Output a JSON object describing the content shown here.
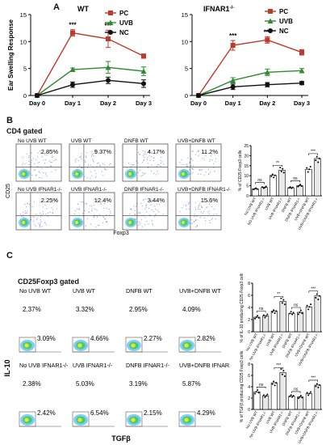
{
  "panel_a": {
    "label": "A",
    "colors": {
      "PC": "#c0392b",
      "UVB": "#2e8b2e",
      "NC": "#111111"
    },
    "chart_data": [
      {
        "type": "line",
        "title": "WT",
        "ylabel": "Ear Swelling Response",
        "categories": [
          "Day 0",
          "Day 1",
          "Day 2",
          "Day 3"
        ],
        "ylim": [
          0,
          15
        ],
        "yticks": [
          "0",
          "5",
          "10",
          "15"
        ],
        "series": [
          {
            "name": "PC",
            "values": [
              0,
              11.6,
              10.5,
              7.3
            ],
            "err": [
              0,
              0.6,
              1.6,
              0.4
            ]
          },
          {
            "name": "UVB",
            "values": [
              0,
              4.8,
              5.2,
              4.5
            ],
            "err": [
              0,
              0.3,
              1.1,
              0.8
            ]
          },
          {
            "name": "NC",
            "values": [
              0,
              2.0,
              2.8,
              2.2
            ],
            "err": [
              0,
              0.5,
              0.6,
              0.7
            ]
          }
        ],
        "annotations": [
          {
            "at": "Day 1",
            "text": "***"
          },
          {
            "at": "Day 2",
            "text": "***"
          }
        ],
        "legend": "top-right"
      },
      {
        "type": "line",
        "title": "IFNAR1",
        "title_sup": "-/-",
        "categories": [
          "Day 0",
          "Day 1",
          "Day 2",
          "Day 3"
        ],
        "ylim": [
          0,
          15
        ],
        "yticks": [
          "0",
          "5",
          "10",
          "15"
        ],
        "series": [
          {
            "name": "PC",
            "values": [
              0,
              9.3,
              10.3,
              8.0
            ],
            "err": [
              0,
              0.9,
              0.6,
              0.5
            ]
          },
          {
            "name": "UVB",
            "values": [
              0,
              2.8,
              4.3,
              4.6
            ],
            "err": [
              0,
              0.5,
              0.6,
              0.4
            ]
          },
          {
            "name": "NC",
            "values": [
              0,
              1.6,
              2.0,
              2.3
            ],
            "err": [
              0,
              0.5,
              0.4,
              0.3
            ]
          }
        ],
        "annotations": [
          {
            "at": "Day 1",
            "text": "***"
          },
          {
            "at": "Day 2",
            "text": "***"
          }
        ],
        "legend": "top-right"
      }
    ]
  },
  "panel_b": {
    "label": "B",
    "gate": "CD4 gated",
    "yaxis": "CD25",
    "xaxis": "Foxp3",
    "plots": [
      {
        "label": "No UVB WT",
        "pct": "2.85%"
      },
      {
        "label": "UVB WT",
        "pct": "9.37%"
      },
      {
        "label": "DNFB WT",
        "pct": "4.17%"
      },
      {
        "label": "UVB+DNFB WT",
        "pct": "11.2%"
      },
      {
        "label": "No UVB IFNAR1-/-",
        "pct": "2.25%"
      },
      {
        "label": "UVB IFNAR1-/-",
        "pct": "12.4%"
      },
      {
        "label": "DNFB IFNAR1-/-",
        "pct": "3.44%"
      },
      {
        "label": "UVB+DNFB IFNAR1-/-",
        "pct": "15.6%"
      }
    ],
    "bar_chart": {
      "type": "bar",
      "ylabel": "% of CD25 Foxp3 cells",
      "ylim": [
        0,
        25
      ],
      "yticks": [
        "0",
        "5",
        "10",
        "15",
        "20",
        "25"
      ],
      "categories": [
        "No UVB WT",
        "NO UVB IFNAR1-/-",
        "UVB WT",
        "UVB IFNAR1-/-",
        "DNFB WT",
        "DNFB IFNAR1-/-",
        "UVB+DNFB WT",
        "UVB+DNFB IFNAR1-/-"
      ],
      "values": [
        3.5,
        4.2,
        10.2,
        12.8,
        4.0,
        5.1,
        13.2,
        18.6
      ],
      "sig": [
        {
          "pair": [
            0,
            1
          ],
          "text": "ns"
        },
        {
          "pair": [
            2,
            3
          ],
          "text": "**"
        },
        {
          "pair": [
            4,
            5
          ],
          "text": "ns"
        },
        {
          "pair": [
            6,
            7
          ],
          "text": "***"
        }
      ]
    }
  },
  "panel_c": {
    "label": "C",
    "gate": "CD25Foxp3 gated",
    "yaxis": "IL-10",
    "xaxis": "TGFβ",
    "plots": [
      {
        "label": "No UVB WT",
        "top": "2.37%",
        "bottom": "3.09%"
      },
      {
        "label": "UVB WT",
        "top": "3.32%",
        "bottom": "4.66%"
      },
      {
        "label": "DNFB WT",
        "top": "2.95%",
        "bottom": "2.27%"
      },
      {
        "label": "UVB+DNFB WT",
        "top": "4.09%",
        "bottom": "2.82%"
      },
      {
        "label": "No UVB IFNAR1-/-",
        "top": "2.38%",
        "bottom": "2.42%"
      },
      {
        "label": "UVB IFNAR1-/-",
        "top": "5.03%",
        "bottom": "6.54%"
      },
      {
        "label": "DNFB IFNAR1-/-",
        "top": "3.19%",
        "bottom": "2.15%"
      },
      {
        "label": "UVB+DNFB IFNAR1-/-",
        "top": "5.87%",
        "bottom": "4.29%"
      }
    ],
    "bar_charts": [
      {
        "type": "bar",
        "ylabel": "% of IL-10 producing CD25 Foxp3 cells",
        "ylim": [
          0,
          8
        ],
        "yticks": [
          "0",
          "2",
          "4",
          "6",
          "8"
        ],
        "categories": [
          "No UVB WT",
          "No UVB IFNAR1-/-",
          "UVB WT",
          "UVB IFNAR1-/-",
          "DNFB WT",
          "DNFB IFNAR1-/-",
          "UVB+DNFB WT",
          "UVB+DNFB IFNAR1-/-"
        ],
        "values": [
          2.4,
          2.6,
          3.4,
          5.0,
          3.0,
          3.2,
          4.1,
          5.9
        ],
        "sig": [
          {
            "pair": [
              0,
              1
            ],
            "text": "ns"
          },
          {
            "pair": [
              2,
              3
            ],
            "text": "**"
          },
          {
            "pair": [
              4,
              5
            ],
            "text": "ns"
          },
          {
            "pair": [
              6,
              7
            ],
            "text": "***"
          }
        ]
      },
      {
        "type": "bar",
        "ylabel": "% of TGFβ producing CD25 Foxp3 cells",
        "ylim": [
          0,
          8
        ],
        "yticks": [
          "0",
          "2",
          "4",
          "6",
          "8"
        ],
        "categories": [
          "No UVB WT",
          "No UVB IFNAR1-/-",
          "UVB WT",
          "UVB IFNAR1-/-",
          "DNFB WT",
          "DNFB IFNAR1-/-",
          "UVB+DNFB WT",
          "UVB+DNFB IFNAR1-/-"
        ],
        "values": [
          3.1,
          2.4,
          4.7,
          6.5,
          2.3,
          2.2,
          2.8,
          4.3
        ],
        "sig": [
          {
            "pair": [
              0,
              1
            ],
            "text": "ns"
          },
          {
            "pair": [
              2,
              3
            ],
            "text": "***"
          },
          {
            "pair": [
              4,
              5
            ],
            "text": "ns"
          },
          {
            "pair": [
              6,
              7
            ],
            "text": "***"
          }
        ]
      }
    ]
  }
}
